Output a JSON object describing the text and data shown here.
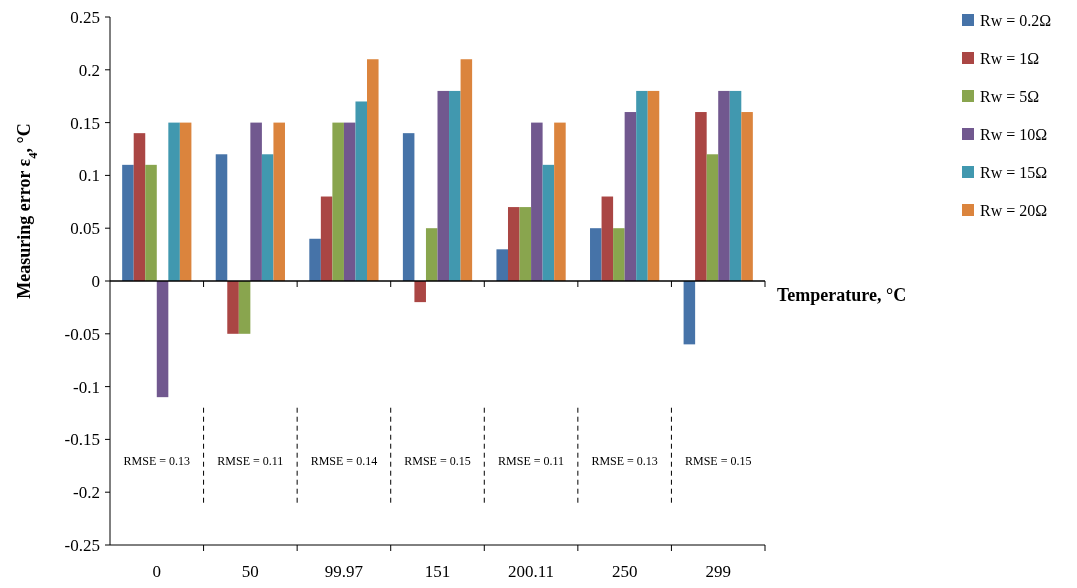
{
  "chart_data": {
    "type": "bar",
    "xlabel": "Temperature, °C",
    "ylabel": "Measuring error ε$_{4}$, °C",
    "categories": [
      "0",
      "50",
      "99.97",
      "151",
      "200.11",
      "250",
      "299"
    ],
    "series": [
      {
        "name": "Rw = 0.2Ω",
        "color": "#4673a8",
        "values": [
          0.11,
          0.12,
          0.04,
          0.14,
          0.03,
          0.05,
          -0.06
        ]
      },
      {
        "name": "Rw = 1Ω",
        "color": "#aa4644",
        "values": [
          0.14,
          -0.05,
          0.08,
          -0.02,
          0.07,
          0.08,
          0.16
        ]
      },
      {
        "name": "Rw = 5Ω",
        "color": "#89a54e",
        "values": [
          0.11,
          -0.05,
          0.15,
          0.05,
          0.07,
          0.05,
          0.12
        ]
      },
      {
        "name": "Rw = 10Ω",
        "color": "#71588f",
        "values": [
          -0.11,
          0.15,
          0.15,
          0.18,
          0.15,
          0.16,
          0.18
        ]
      },
      {
        "name": "Rw = 15Ω",
        "color": "#4198af",
        "values": [
          0.15,
          0.12,
          0.17,
          0.18,
          0.11,
          0.18,
          0.18
        ]
      },
      {
        "name": "Rw = 20Ω",
        "color": "#db843d",
        "values": [
          0.15,
          0.15,
          0.21,
          0.21,
          0.15,
          0.18,
          0.16
        ]
      }
    ],
    "ylim": [
      -0.25,
      0.25
    ],
    "yticks": [
      -0.25,
      -0.2,
      -0.15,
      -0.1,
      -0.05,
      0,
      0.05,
      0.1,
      0.15,
      0.2,
      0.25
    ],
    "annotations": [
      "RMSE = 0.13",
      "RMSE = 0.11",
      "RMSE = 0.14",
      "RMSE = 0.15",
      "RMSE = 0.11",
      "RMSE = 0.13",
      "RMSE = 0.15"
    ],
    "legend": "right"
  }
}
